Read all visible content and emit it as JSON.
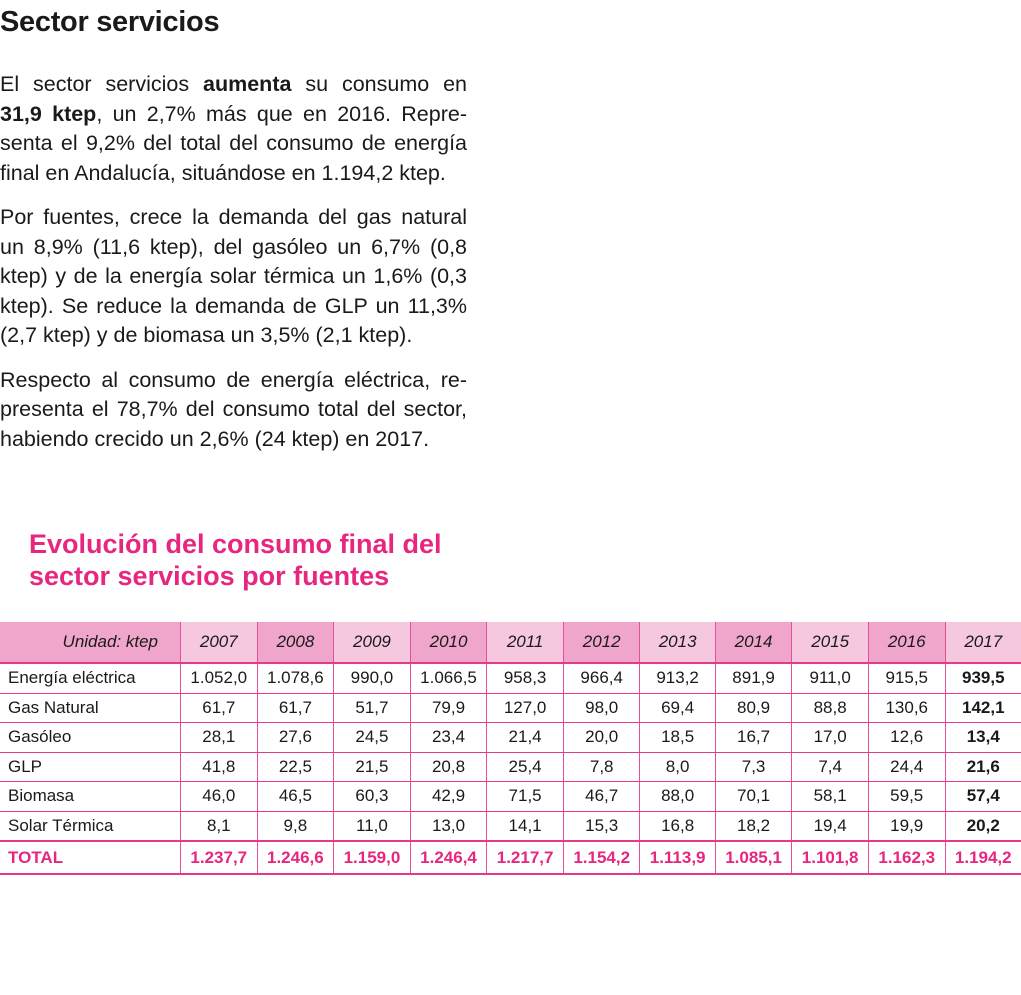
{
  "title": "Sector servicios",
  "paragraphs": [
    {
      "lines": [
        [
          "El sector servicios ",
          "aumenta",
          " su consumo en"
        ],
        [
          "",
          "31,9 ktep",
          ", un 2,7% más que en 2016. Repre-"
        ],
        [
          "senta el 9,2% del total del consumo de energía"
        ],
        [
          "final en Andalucía, situándose en 1.194,2 ktep."
        ]
      ]
    },
    {
      "lines": [
        [
          "Por fuentes, crece la demanda del gas natural"
        ],
        [
          "un 8,9% (11,6 ktep), del gasóleo un 6,7% (0,8"
        ],
        [
          "ktep) y de la energía solar térmica un 1,6% (0,3"
        ],
        [
          "ktep). Se reduce la demanda de GLP un 11,3%"
        ],
        [
          "(2,7 ktep) y de biomasa un 3,5% (2,1 ktep)."
        ]
      ]
    },
    {
      "lines": [
        [
          "Respecto al consumo de energía eléctrica, re-"
        ],
        [
          "presenta el 78,7% del consumo total del sector,"
        ],
        [
          "habiendo crecido un 2,6% (24 ktep) en 2017."
        ]
      ]
    }
  ],
  "table_title": "Evolución del consumo final del sector servicios por fuentes",
  "table": {
    "unit_label": "Unidad: ktep",
    "years": [
      "2007",
      "2008",
      "2009",
      "2010",
      "2011",
      "2012",
      "2013",
      "2014",
      "2015",
      "2016",
      "2017"
    ],
    "rows": [
      {
        "label": "Energía eléctrica",
        "values": [
          "1.052,0",
          "1.078,6",
          "990,0",
          "1.066,5",
          "958,3",
          "966,4",
          "913,2",
          "891,9",
          "911,0",
          "915,5",
          "939,5"
        ]
      },
      {
        "label": "Gas Natural",
        "values": [
          "61,7",
          "61,7",
          "51,7",
          "79,9",
          "127,0",
          "98,0",
          "69,4",
          "80,9",
          "88,8",
          "130,6",
          "142,1"
        ]
      },
      {
        "label": "Gasóleo",
        "values": [
          "28,1",
          "27,6",
          "24,5",
          "23,4",
          "21,4",
          "20,0",
          "18,5",
          "16,7",
          "17,0",
          "12,6",
          "13,4"
        ]
      },
      {
        "label": "GLP",
        "values": [
          "41,8",
          "22,5",
          "21,5",
          "20,8",
          "25,4",
          "7,8",
          "8,0",
          "7,3",
          "7,4",
          "24,4",
          "21,6"
        ]
      },
      {
        "label": "Biomasa",
        "values": [
          "46,0",
          "46,5",
          "60,3",
          "42,9",
          "71,5",
          "46,7",
          "88,0",
          "70,1",
          "58,1",
          "59,5",
          "57,4"
        ]
      },
      {
        "label": "Solar Térmica",
        "values": [
          "8,1",
          "9,8",
          "11,0",
          "13,0",
          "14,1",
          "15,3",
          "16,8",
          "18,2",
          "19,4",
          "19,9",
          "20,2"
        ]
      }
    ],
    "total": {
      "label": "TOTAL",
      "values": [
        "1.237,7",
        "1.246,6",
        "1.159,0",
        "1.246,4",
        "1.217,7",
        "1.154,2",
        "1.113,9",
        "1.085,1",
        "1.101,8",
        "1.162,3",
        "1.194,2"
      ]
    }
  },
  "colors": {
    "accent": "#e6267f",
    "header_light": "#f6c8df",
    "header_dark": "#f0a6ca"
  }
}
